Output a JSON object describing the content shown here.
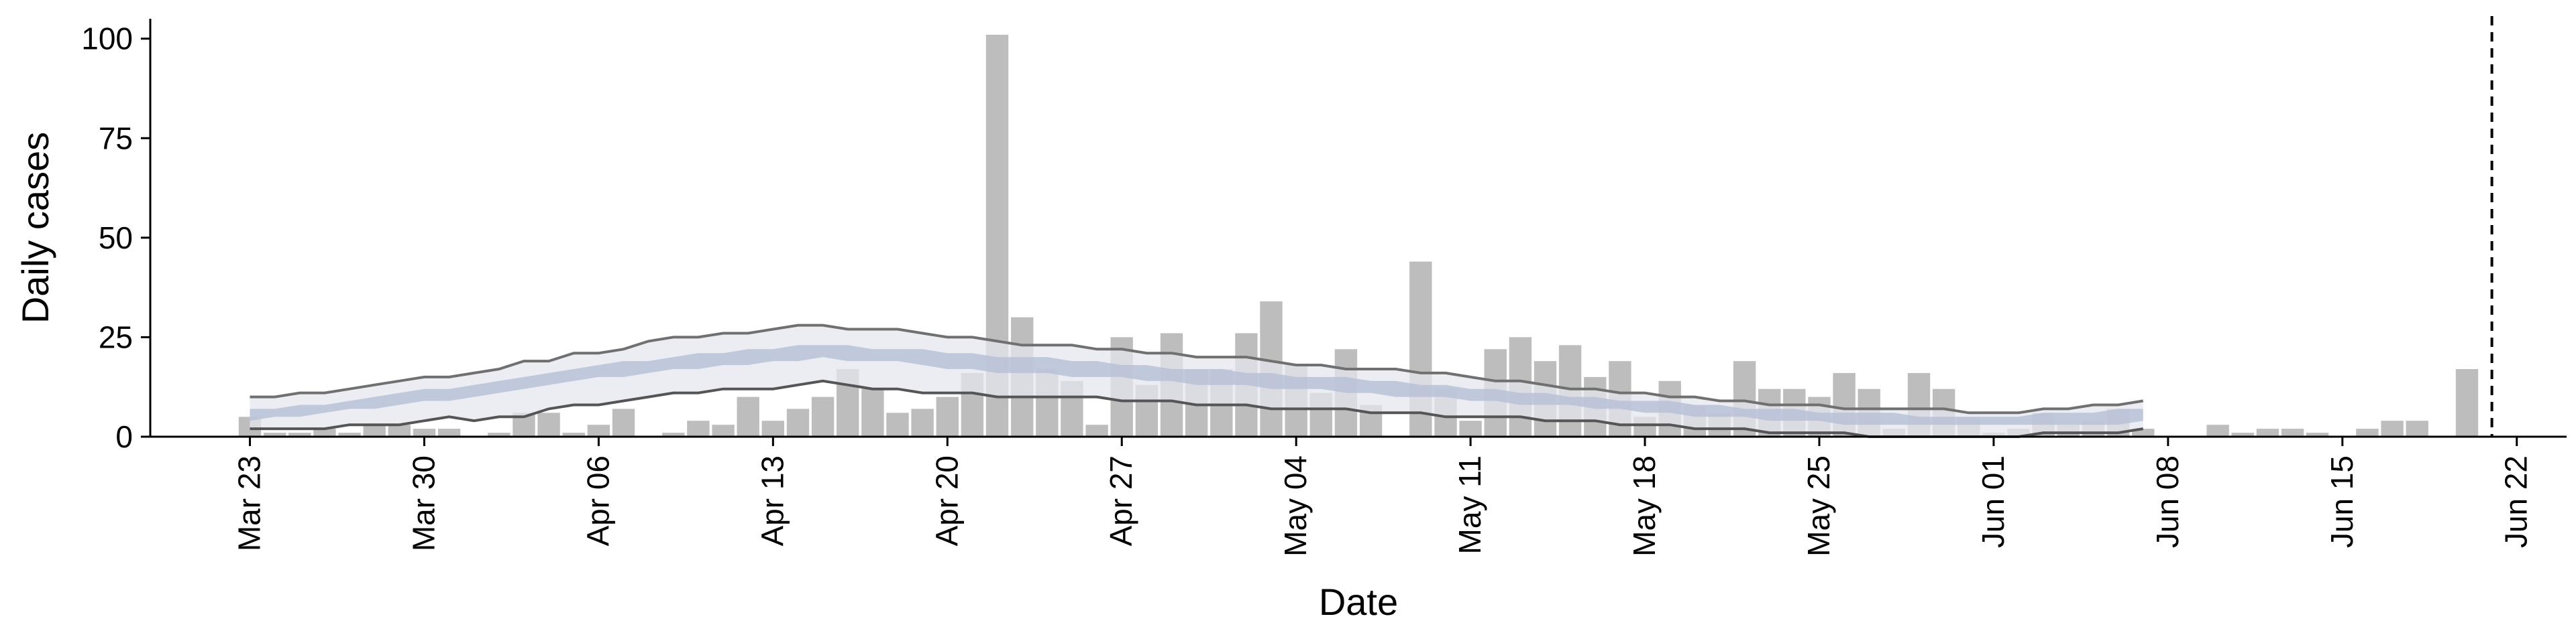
{
  "chart_data": {
    "type": "bar",
    "xlabel": "Date",
    "ylabel": "Daily cases",
    "ylim": [
      0,
      105
    ],
    "yticks": [
      0,
      25,
      50,
      75,
      100
    ],
    "xlim": [
      "2020-03-19",
      "2020-06-24"
    ],
    "xticks": [
      {
        "date": "2020-03-23",
        "label": "Mar 23"
      },
      {
        "date": "2020-03-30",
        "label": "Mar 30"
      },
      {
        "date": "2020-04-06",
        "label": "Apr 06"
      },
      {
        "date": "2020-04-13",
        "label": "Apr 13"
      },
      {
        "date": "2020-04-20",
        "label": "Apr 20"
      },
      {
        "date": "2020-04-27",
        "label": "Apr 27"
      },
      {
        "date": "2020-05-04",
        "label": "May 04"
      },
      {
        "date": "2020-05-11",
        "label": "May 11"
      },
      {
        "date": "2020-05-18",
        "label": "May 18"
      },
      {
        "date": "2020-05-25",
        "label": "May 25"
      },
      {
        "date": "2020-06-01",
        "label": "Jun 01"
      },
      {
        "date": "2020-06-08",
        "label": "Jun 08"
      },
      {
        "date": "2020-06-15",
        "label": "Jun 15"
      },
      {
        "date": "2020-06-22",
        "label": "Jun 22"
      }
    ],
    "vline_date": "2020-06-21",
    "bars": {
      "start_date": "2020-03-23",
      "values": [
        5,
        1,
        1,
        2,
        1,
        3,
        3,
        2,
        2,
        0,
        1,
        6,
        6,
        1,
        3,
        7,
        0,
        1,
        4,
        3,
        10,
        4,
        7,
        10,
        17,
        12,
        6,
        7,
        10,
        16,
        101,
        30,
        17,
        14,
        3,
        25,
        13,
        26,
        17,
        17,
        26,
        34,
        18,
        11,
        22,
        8,
        0,
        44,
        12,
        4,
        22,
        25,
        19,
        23,
        15,
        19,
        5,
        14,
        8,
        6,
        19,
        12,
        12,
        10,
        16,
        12,
        2,
        16,
        12,
        5,
        1,
        2,
        6,
        3,
        4,
        7,
        2,
        0,
        0,
        3,
        1,
        2,
        2,
        1,
        0,
        2,
        4,
        4,
        0,
        17
      ]
    },
    "series": [
      {
        "role": "upper",
        "start_date": "2020-03-23",
        "values": [
          10,
          10,
          11,
          11,
          12,
          13,
          14,
          15,
          15,
          16,
          17,
          19,
          19,
          21,
          21,
          22,
          24,
          25,
          25,
          26,
          26,
          27,
          28,
          28,
          27,
          27,
          27,
          26,
          25,
          25,
          24,
          23,
          23,
          23,
          22,
          22,
          21,
          21,
          20,
          20,
          20,
          19,
          18,
          18,
          17,
          17,
          17,
          16,
          16,
          15,
          14,
          14,
          13,
          12,
          12,
          11,
          11,
          10,
          10,
          9,
          9,
          8,
          8,
          8,
          7,
          7,
          7,
          7,
          7,
          6,
          6,
          6,
          7,
          7,
          8,
          8,
          9
        ]
      },
      {
        "role": "lower",
        "start_date": "2020-03-23",
        "values": [
          2,
          2,
          2,
          2,
          3,
          3,
          3,
          4,
          5,
          4,
          5,
          5,
          7,
          8,
          8,
          9,
          10,
          11,
          11,
          12,
          12,
          12,
          13,
          14,
          13,
          12,
          12,
          11,
          11,
          11,
          10,
          10,
          10,
          10,
          10,
          9,
          9,
          9,
          8,
          8,
          8,
          7,
          7,
          7,
          7,
          6,
          6,
          6,
          5,
          5,
          5,
          5,
          4,
          4,
          4,
          3,
          3,
          3,
          2,
          2,
          2,
          1,
          1,
          1,
          1,
          0,
          0,
          0,
          0,
          0,
          0,
          0,
          1,
          1,
          1,
          1,
          2
        ]
      },
      {
        "role": "band-low",
        "start_date": "2020-03-23",
        "values": [
          4,
          5,
          5,
          6,
          7,
          7,
          8,
          9,
          9,
          10,
          11,
          12,
          13,
          14,
          15,
          15,
          16,
          17,
          17,
          18,
          18,
          19,
          19,
          20,
          19,
          19,
          19,
          18,
          17,
          17,
          16,
          16,
          16,
          15,
          15,
          15,
          14,
          14,
          13,
          13,
          13,
          12,
          12,
          12,
          11,
          11,
          10,
          10,
          10,
          9,
          9,
          8,
          8,
          8,
          7,
          7,
          6,
          6,
          5,
          5,
          5,
          4,
          4,
          4,
          3,
          3,
          3,
          3,
          3,
          3,
          3,
          3,
          3,
          3,
          3,
          3,
          4
        ]
      },
      {
        "role": "band-high",
        "start_date": "2020-03-23",
        "values": [
          7,
          7,
          8,
          8,
          9,
          10,
          11,
          12,
          12,
          13,
          14,
          15,
          16,
          17,
          18,
          19,
          19,
          20,
          21,
          21,
          22,
          22,
          23,
          23,
          23,
          22,
          22,
          22,
          21,
          21,
          20,
          20,
          20,
          19,
          19,
          18,
          18,
          17,
          17,
          17,
          16,
          16,
          15,
          15,
          15,
          14,
          14,
          13,
          13,
          12,
          12,
          11,
          11,
          10,
          10,
          9,
          9,
          9,
          8,
          8,
          7,
          7,
          7,
          6,
          6,
          6,
          6,
          5,
          5,
          5,
          5,
          5,
          6,
          6,
          6,
          7,
          7
        ]
      }
    ],
    "colors": {
      "bar": "#bdbdbd",
      "band_outer": "#e4e7ef",
      "band_inner": "#b8c1d6",
      "line": "#707070",
      "axis": "#000000"
    }
  }
}
